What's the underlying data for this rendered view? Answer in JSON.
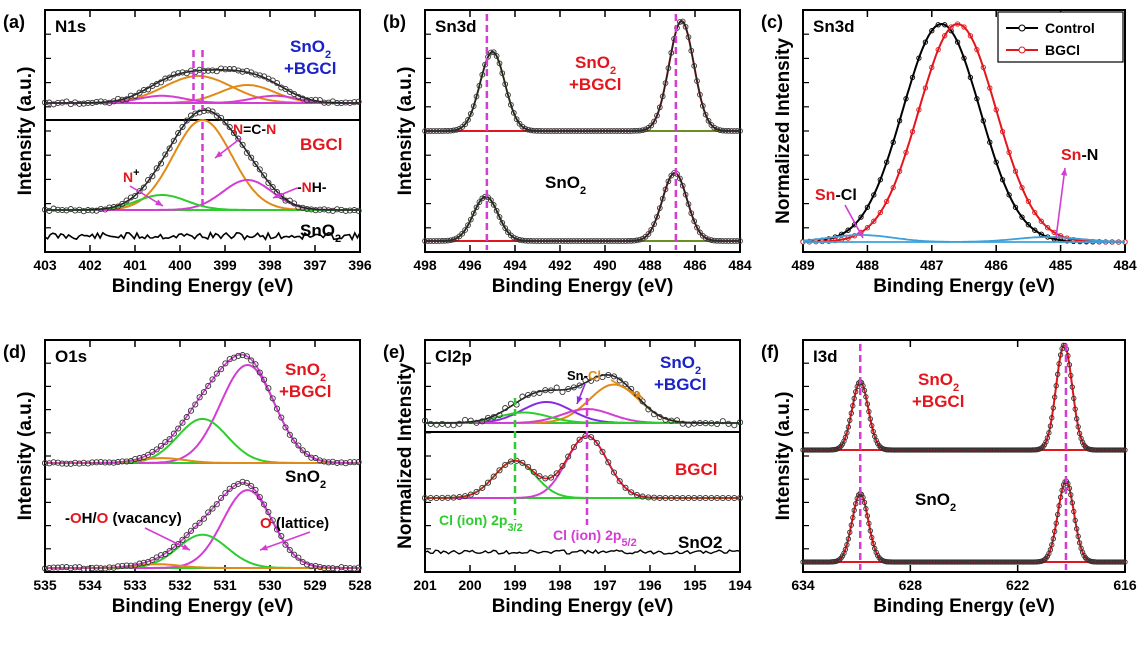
{
  "colors": {
    "black": "#000000",
    "red": "#e3161d",
    "blue": "#1a22c8",
    "orange": "#e08a18",
    "magenta": "#d43cd4",
    "green": "#2ecc2e",
    "lightblue": "#3ea0d8",
    "navy": "#1a237e",
    "olive": "#6b8e23",
    "purple": "#8a2be2"
  },
  "chart_data": [
    {
      "type": "line",
      "panel": "(a)",
      "title": "N1s",
      "xlabel": "Binding Energy (eV)",
      "ylabel": "Intensity (a.u.)",
      "xlim": [
        403,
        396
      ],
      "xticks": [
        "403",
        "402",
        "401",
        "400",
        "399",
        "398",
        "397",
        "396"
      ],
      "sample_labels": [
        {
          "sub": "SnO",
          "subscript": "2",
          "line2": "+BGCl",
          "color": "#1a22c8"
        },
        {
          "text": "BGCl",
          "color": "#e3161d"
        },
        {
          "sub": "SnO",
          "subscript": "2",
          "color": "#000000"
        }
      ],
      "annotations": [
        "N=C-N",
        "N",
        "+",
        "-NH-"
      ],
      "spectra": [
        {
          "name": "SnO2+BGCl",
          "baseline": 0.1,
          "peaks": [
            {
              "center": 399.6,
              "amp": 0.3,
              "width": 0.75,
              "color": "#e08a18"
            },
            {
              "center": 398.5,
              "amp": 0.2,
              "width": 0.6,
              "color": "#e08a18"
            },
            {
              "center": 400.4,
              "amp": 0.08,
              "width": 0.5,
              "color": "#d43cd4"
            },
            {
              "center": 397.9,
              "amp": 0.08,
              "width": 0.5,
              "color": "#d43cd4"
            }
          ]
        },
        {
          "name": "BGCl",
          "baseline": 0.1,
          "peaks": [
            {
              "center": 399.5,
              "amp": 0.9,
              "width": 0.65,
              "color": "#e08a18"
            },
            {
              "center": 398.5,
              "amp": 0.3,
              "width": 0.55,
              "color": "#d43cd4"
            },
            {
              "center": 400.4,
              "amp": 0.15,
              "width": 0.55,
              "color": "#2ecc2e"
            }
          ]
        },
        {
          "name": "SnO2",
          "baseline": 0.0,
          "peaks": []
        }
      ]
    },
    {
      "type": "line",
      "panel": "(b)",
      "title": "Sn3d",
      "xlabel": "Binding Energy (eV)",
      "ylabel": "Intensity (a.u.)",
      "xlim": [
        498,
        484
      ],
      "xticks": [
        "498",
        "496",
        "494",
        "492",
        "490",
        "488",
        "486",
        "484"
      ],
      "sample_labels": [
        {
          "sub": "SnO",
          "subscript": "2",
          "line2": "+BGCl",
          "color": "#e3161d"
        },
        {
          "sub": "SnO",
          "subscript": "2",
          "color": "#000000"
        }
      ],
      "spectra": [
        {
          "name": "SnO2+BGCl",
          "peaks": [
            {
              "center": 495.0,
              "amp": 0.72,
              "width": 0.55,
              "color": "#6b8e23"
            },
            {
              "center": 486.6,
              "amp": 1.0,
              "width": 0.55,
              "color": "#e3161d"
            }
          ]
        },
        {
          "name": "SnO2",
          "peaks": [
            {
              "center": 495.3,
              "amp": 0.6,
              "width": 0.55,
              "color": "#6b8e23"
            },
            {
              "center": 486.9,
              "amp": 0.92,
              "width": 0.55,
              "color": "#e3161d"
            }
          ]
        }
      ],
      "dashed_lines": [
        495.25,
        486.85
      ]
    },
    {
      "type": "line",
      "panel": "(c)",
      "title": "Sn3d",
      "xlabel": "Binding Energy (eV)",
      "ylabel": "Normalized Intensity",
      "xlim": [
        489,
        484
      ],
      "xticks": [
        "489",
        "488",
        "487",
        "486",
        "485",
        "484"
      ],
      "legend": [
        "Control",
        "BGCl"
      ],
      "legend_position": "top-right",
      "series": [
        {
          "name": "Control",
          "color": "#000000",
          "center": 486.85,
          "width": 0.6
        },
        {
          "name": "BGCl",
          "color": "#e3161d",
          "center": 486.6,
          "width": 0.6
        }
      ],
      "annotations": [
        {
          "prefix": "Sn",
          "rest": "-Cl"
        },
        {
          "prefix": "Sn",
          "rest": "-N"
        }
      ]
    },
    {
      "type": "line",
      "panel": "(d)",
      "title": "O1s",
      "xlabel": "Binding Energy (eV)",
      "ylabel": "Intensity (a.u.)",
      "xlim": [
        535,
        528
      ],
      "xticks": [
        "535",
        "534",
        "533",
        "532",
        "531",
        "530",
        "529",
        "528"
      ],
      "sample_labels": [
        {
          "sub": "SnO",
          "subscript": "2",
          "line2": "+BGCl",
          "color": "#e3161d"
        },
        {
          "sub": "SnO",
          "subscript": "2",
          "color": "#000000"
        }
      ],
      "annotations": [
        {
          "parts": [
            "-",
            "O",
            "H/",
            "O",
            " (vacancy)"
          ]
        },
        {
          "parts": [
            "O",
            " (lattice)"
          ]
        }
      ],
      "spectra": [
        {
          "name": "SnO2+BGCl",
          "peaks": [
            {
              "center": 530.5,
              "amp": 1.0,
              "width": 0.6,
              "color": "#d43cd4"
            },
            {
              "center": 531.5,
              "amp": 0.45,
              "width": 0.55,
              "color": "#2ecc2e"
            },
            {
              "center": 532.4,
              "amp": 0.05,
              "width": 0.5,
              "color": "#e08a18"
            }
          ]
        },
        {
          "name": "SnO2",
          "peaks": [
            {
              "center": 530.5,
              "amp": 0.82,
              "width": 0.55,
              "color": "#d43cd4"
            },
            {
              "center": 531.5,
              "amp": 0.35,
              "width": 0.55,
              "color": "#2ecc2e"
            },
            {
              "center": 532.5,
              "amp": 0.04,
              "width": 0.5,
              "color": "#e08a18"
            }
          ]
        }
      ]
    },
    {
      "type": "line",
      "panel": "(e)",
      "title": "Cl2p",
      "xlabel": "Binding Energy (eV)",
      "ylabel": "Normalized Intensity",
      "xlim": [
        201,
        194
      ],
      "xticks": [
        "201",
        "200",
        "199",
        "198",
        "197",
        "196",
        "195",
        "194"
      ],
      "sample_labels": [
        {
          "sub": "SnO",
          "subscript": "2",
          "line2": "+BGCl",
          "color": "#1a22c8"
        },
        {
          "text": "BGCl",
          "color": "#e3161d"
        },
        {
          "text": "SnO2",
          "color": "#000000"
        }
      ],
      "annotations": [
        {
          "prefix": "Sn-",
          "rest": "Cl"
        },
        {
          "base": "Cl (ion) 2p",
          "subscript": "3/2",
          "color": "#2ecc2e"
        },
        {
          "base": "Cl (ion) 2p",
          "subscript": "5/2",
          "color": "#d43cd4"
        }
      ],
      "dashed_lines": [
        199.0,
        197.4
      ],
      "spectra": [
        {
          "name": "SnO2+BGCl",
          "peaks": [
            {
              "center": 196.8,
              "amp": 0.55,
              "width": 0.55,
              "color": "#e08a18"
            },
            {
              "center": 198.3,
              "amp": 0.3,
              "width": 0.55,
              "color": "#8a2be2"
            },
            {
              "center": 197.4,
              "amp": 0.2,
              "width": 0.55,
              "color": "#d43cd4"
            },
            {
              "center": 198.8,
              "amp": 0.15,
              "width": 0.55,
              "color": "#2ecc2e"
            }
          ]
        },
        {
          "name": "BGCl",
          "peaks": [
            {
              "center": 197.4,
              "amp": 1.0,
              "width": 0.45,
              "color": "#d43cd4"
            },
            {
              "center": 199.0,
              "amp": 0.6,
              "width": 0.45,
              "color": "#2ecc2e"
            }
          ]
        },
        {
          "name": "SnO2",
          "peaks": []
        }
      ]
    },
    {
      "type": "line",
      "panel": "(f)",
      "title": "I3d",
      "xlabel": "Binding Energy (eV)",
      "ylabel": "Intensity (a.u.)",
      "xlim": [
        634,
        616
      ],
      "xticks": [
        "634",
        "628",
        "622",
        "616"
      ],
      "sample_labels": [
        {
          "sub": "SnO",
          "subscript": "2",
          "line2": "+BGCl",
          "color": "#e3161d"
        },
        {
          "sub": "SnO",
          "subscript": "2",
          "color": "#000000"
        }
      ],
      "dashed_lines": [
        630.8,
        619.3
      ],
      "spectra": [
        {
          "name": "SnO2+BGCl",
          "peaks": [
            {
              "center": 630.8,
              "amp": 0.65,
              "width": 0.45,
              "color": "#e3161d"
            },
            {
              "center": 619.4,
              "amp": 1.0,
              "width": 0.45,
              "color": "#e3161d"
            }
          ]
        },
        {
          "name": "SnO2",
          "peaks": [
            {
              "center": 630.8,
              "amp": 0.72,
              "width": 0.45,
              "color": "#e3161d"
            },
            {
              "center": 619.3,
              "amp": 0.85,
              "width": 0.45,
              "color": "#e3161d"
            }
          ]
        }
      ]
    }
  ]
}
